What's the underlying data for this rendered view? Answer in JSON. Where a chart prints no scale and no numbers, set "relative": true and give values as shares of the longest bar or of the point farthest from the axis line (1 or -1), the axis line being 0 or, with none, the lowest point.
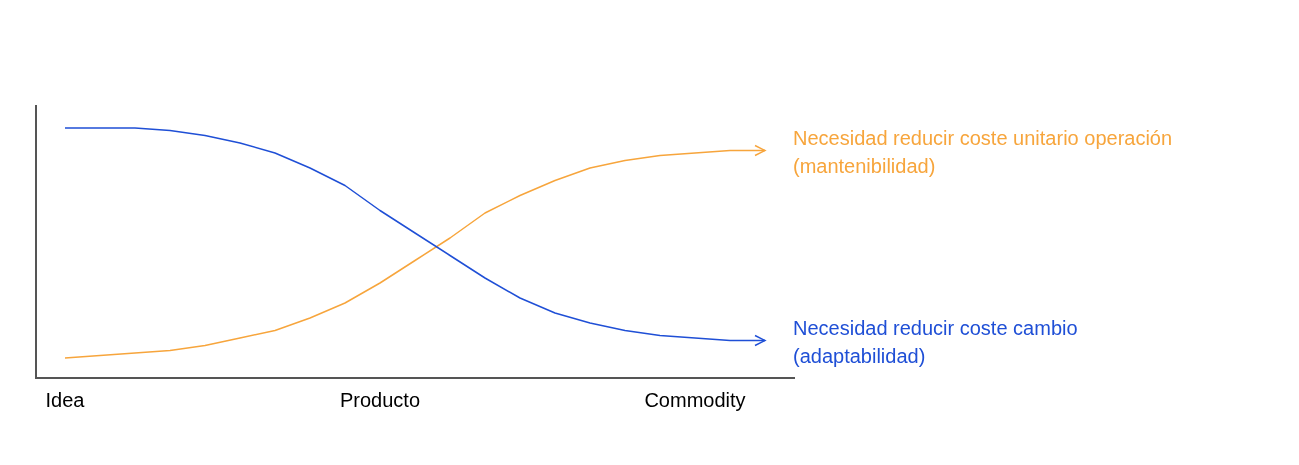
{
  "chart_data": {
    "type": "line",
    "relative": true,
    "categories": [
      "Idea",
      null,
      null,
      null,
      null,
      null,
      null,
      null,
      null,
      "Producto",
      null,
      null,
      null,
      null,
      null,
      null,
      null,
      null,
      "Commodity",
      null,
      null
    ],
    "series": [
      {
        "name": "Necesidad reducir coste unitario operación (mantenibilidad)",
        "color": "#f7a53c",
        "values": [
          0.08,
          0.09,
          0.1,
          0.11,
          0.13,
          0.16,
          0.19,
          0.24,
          0.3,
          0.38,
          0.47,
          0.56,
          0.66,
          0.73,
          0.79,
          0.84,
          0.87,
          0.89,
          0.9,
          0.91,
          0.91
        ]
      },
      {
        "name": "Necesidad reducir coste cambio (adaptabilidad)",
        "color": "#1f4fd6",
        "values": [
          1,
          1,
          1,
          0.99,
          0.97,
          0.94,
          0.9,
          0.84,
          0.77,
          0.67,
          0.58,
          0.49,
          0.4,
          0.32,
          0.26,
          0.22,
          0.19,
          0.17,
          0.16,
          0.15,
          0.15
        ]
      }
    ],
    "marker": "none",
    "line_style": "solid",
    "legend": "right"
  }
}
